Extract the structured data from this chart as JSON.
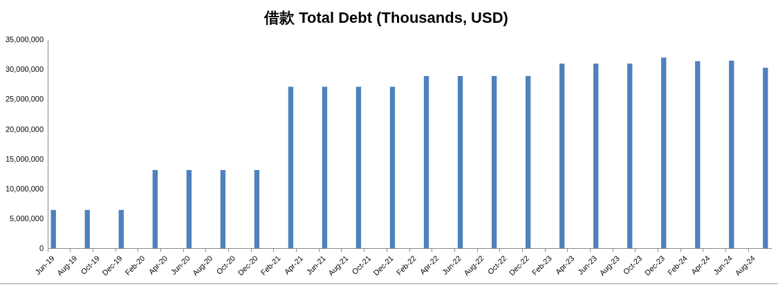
{
  "chart_data": {
    "type": "bar",
    "title": "借款 Total Debt (Thousands, USD)",
    "categories": [
      "Jun-19",
      null,
      "Aug-19",
      null,
      "Oct-19",
      null,
      "Dec-19",
      null,
      "Feb-20",
      null,
      "Apr-20",
      null,
      "Jun-20",
      null,
      "Aug-20",
      null,
      "Oct-20",
      null,
      "Dec-20",
      null,
      "Feb-21",
      null,
      "Apr-21",
      null,
      "Jun-21",
      null,
      "Aug-21",
      null,
      "Oct-21",
      null,
      "Dec-21",
      null,
      "Feb-22",
      null,
      "Apr-22",
      null,
      "Jun-22",
      null,
      "Aug-22",
      null,
      "Oct-22",
      null,
      "Dec-22",
      null,
      "Feb-23",
      null,
      "Apr-23",
      null,
      "Jun-23",
      null,
      "Aug-23",
      null,
      "Oct-23",
      null,
      "Dec-23",
      null,
      "Feb-24",
      null,
      "Apr-24",
      null,
      "Jun-24",
      null,
      "Aug-24",
      null
    ],
    "values": [
      6500000,
      null,
      null,
      6500000,
      null,
      null,
      6500000,
      null,
      null,
      13200000,
      null,
      null,
      13200000,
      null,
      null,
      13200000,
      null,
      null,
      13200000,
      null,
      null,
      27200000,
      null,
      null,
      27200000,
      null,
      null,
      27200000,
      null,
      null,
      27200000,
      null,
      null,
      29000000,
      null,
      null,
      29000000,
      null,
      null,
      29000000,
      null,
      null,
      29000000,
      null,
      null,
      31100000,
      null,
      null,
      31100000,
      null,
      null,
      31100000,
      null,
      null,
      32100000,
      null,
      null,
      31500000,
      null,
      null,
      31600000,
      null,
      null,
      30400000
    ],
    "color": "#4f81bd",
    "ylim": [
      0,
      35000000
    ],
    "yticks": [
      {
        "value": 0,
        "label": "0"
      },
      {
        "value": 5000000,
        "label": "5,000,000"
      },
      {
        "value": 10000000,
        "label": "10,000,000"
      },
      {
        "value": 15000000,
        "label": "15,000,000"
      },
      {
        "value": 20000000,
        "label": "20,000,000"
      },
      {
        "value": 25000000,
        "label": "25,000,000"
      },
      {
        "value": 30000000,
        "label": "30,000,000"
      },
      {
        "value": 35000000,
        "label": "35,000,000"
      }
    ],
    "grid": false,
    "legend": false
  }
}
